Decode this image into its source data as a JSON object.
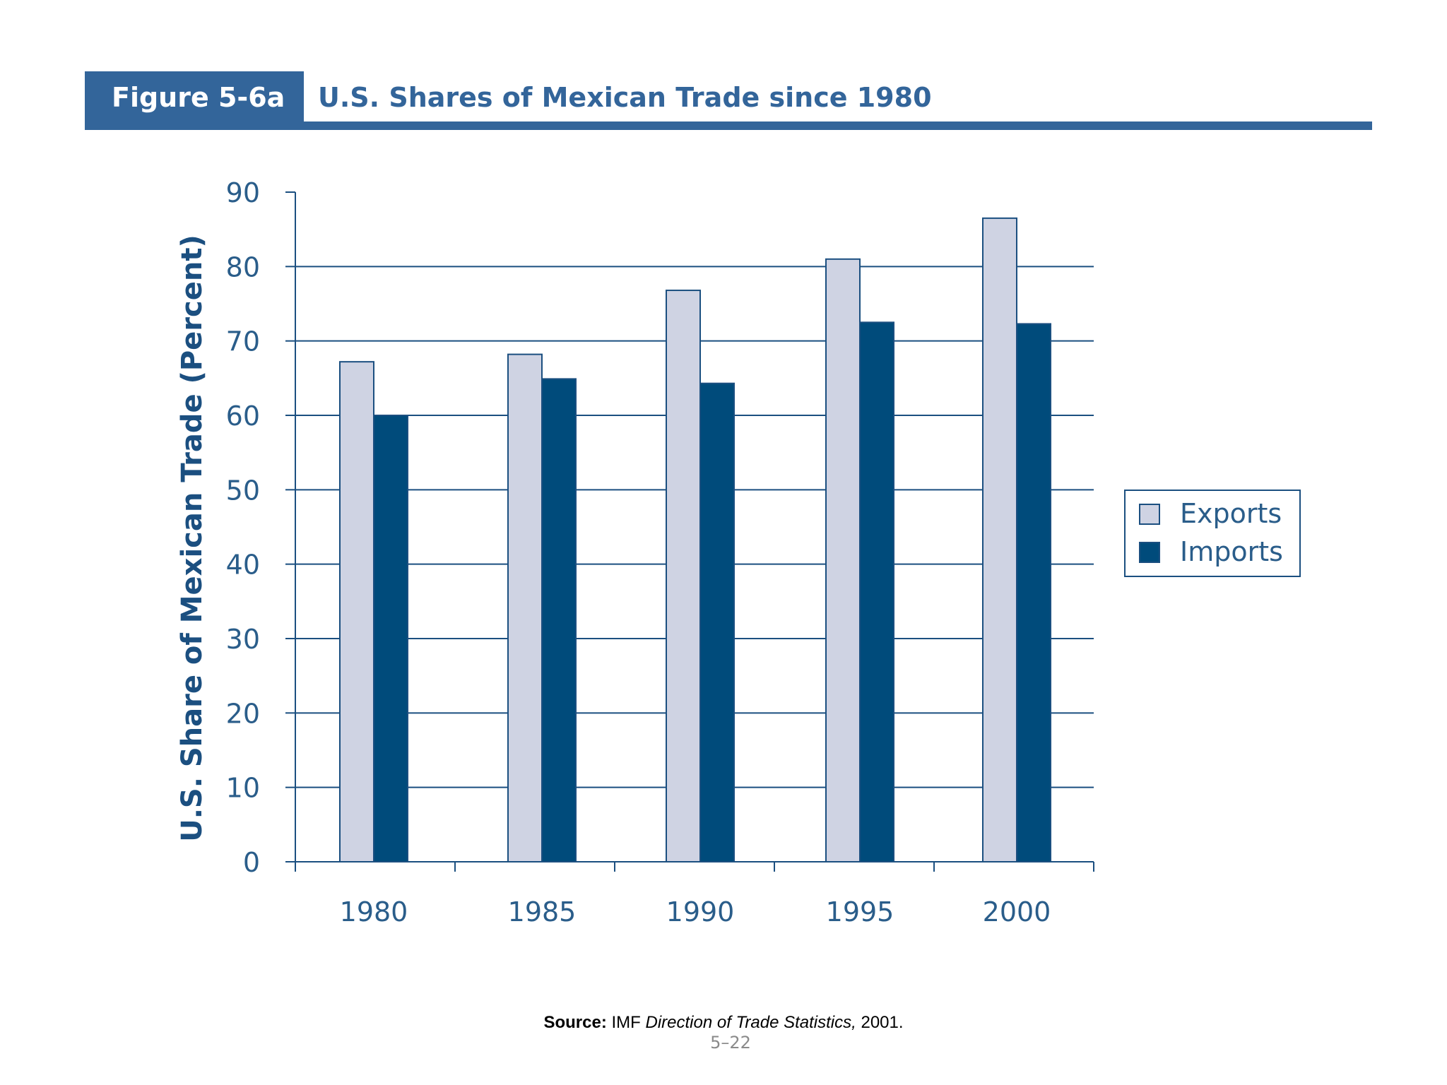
{
  "header": {
    "figure_label": "Figure 5-6a",
    "title": "U.S. Shares of Mexican Trade since 1980"
  },
  "chart_data": {
    "type": "bar",
    "title": "U.S. Shares of Mexican Trade since 1980",
    "xlabel": "",
    "ylabel": "U.S. Share of Mexican Trade (Percent)",
    "categories": [
      "1980",
      "1985",
      "1990",
      "1995",
      "2000"
    ],
    "series": [
      {
        "name": "Exports",
        "values": [
          67.2,
          68.2,
          76.8,
          81.0,
          86.5
        ]
      },
      {
        "name": "Imports",
        "values": [
          60.0,
          64.9,
          64.3,
          72.5,
          72.3
        ]
      }
    ],
    "ylim": [
      0,
      90
    ],
    "yticks": [
      "0",
      "10",
      "20",
      "30",
      "40",
      "50",
      "60",
      "70",
      "80",
      "90"
    ],
    "grid": true,
    "legend": "right",
    "colors": {
      "Exports": "#cfd3e3",
      "Imports": "#004b7b",
      "axis": "#1b4f80",
      "text": "#2a5d8a"
    }
  },
  "footer": {
    "source_label": "Source:",
    "source_prefix": "IMF",
    "source_title": "Direction of Trade Statistics,",
    "source_year": "2001.",
    "page_number": "5–22"
  }
}
